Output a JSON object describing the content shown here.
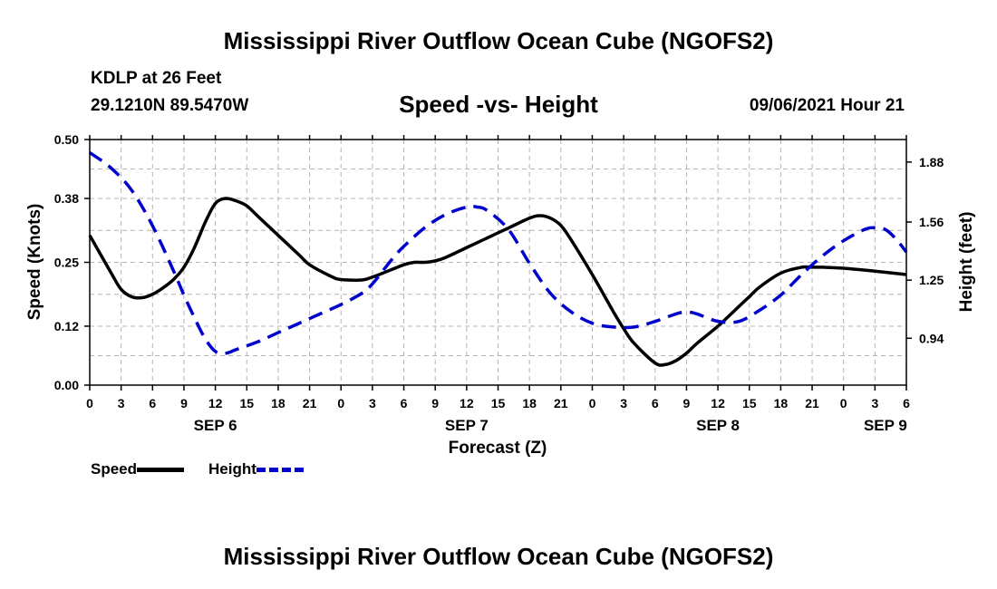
{
  "header": {
    "title": "Mississippi River Outflow Ocean Cube (NGOFS2)",
    "station": "KDLP at 26 Feet",
    "latlon": "29.1210N  89.5470W",
    "subtitle": "Speed -vs- Height",
    "datetime": "09/06/2021 Hour 21"
  },
  "footer": {
    "title": "Mississippi River Outflow Ocean Cube (NGOFS2)"
  },
  "legend": {
    "speed_label": "Speed",
    "height_label": "Height"
  },
  "chart_data": {
    "type": "line",
    "title": "Speed -vs- Height",
    "xlabel": "Forecast (Z)",
    "ylabel": "Speed (Knots)",
    "y2label": "Height (feet)",
    "xlim": [
      0,
      78
    ],
    "ylim": [
      0,
      0.5
    ],
    "y2lim": [
      0.69,
      2.0
    ],
    "grid": true,
    "legend_position": "bottom-left",
    "x_ticks": [
      0,
      3,
      6,
      9,
      12,
      15,
      18,
      21,
      24,
      27,
      30,
      33,
      36,
      39,
      42,
      45,
      48,
      51,
      54,
      57,
      60,
      63,
      66,
      69,
      72,
      75,
      78
    ],
    "x_tick_labels": [
      "0",
      "3",
      "6",
      "9",
      "12",
      "15",
      "18",
      "21",
      "0",
      "3",
      "6",
      "9",
      "12",
      "15",
      "18",
      "21",
      "0",
      "3",
      "6",
      "9",
      "12",
      "15",
      "18",
      "21",
      "0",
      "3",
      "6"
    ],
    "date_labels": [
      {
        "x": 12,
        "label": "SEP 6"
      },
      {
        "x": 36,
        "label": "SEP 7"
      },
      {
        "x": 60,
        "label": "SEP 8"
      },
      {
        "x": 76,
        "label": "SEP 9"
      }
    ],
    "y_ticks": [
      0.0,
      0.12,
      0.25,
      0.38,
      0.5
    ],
    "y_tick_labels": [
      "0.00",
      "0.12",
      "0.25",
      "0.38",
      "0.50"
    ],
    "y2_ticks": [
      0.94,
      1.25,
      1.56,
      1.88
    ],
    "y2_tick_labels": [
      "0.94",
      "1.25",
      "1.56",
      "1.88"
    ],
    "series": [
      {
        "name": "Speed",
        "axis": "left",
        "color": "#000000",
        "dash": "solid",
        "x": [
          0,
          2,
          3,
          4,
          5,
          6,
          7,
          8,
          9,
          10,
          11,
          12,
          13,
          14,
          15,
          16,
          18,
          20,
          21,
          23,
          24,
          26,
          27,
          28,
          30,
          31,
          32,
          33,
          34,
          36,
          38,
          40,
          42,
          43,
          44,
          45,
          46,
          48,
          50,
          51,
          52,
          54,
          55,
          56,
          57,
          58,
          60,
          62,
          63,
          64,
          66,
          68,
          69,
          70,
          72,
          75,
          78
        ],
        "values": [
          0.305,
          0.23,
          0.195,
          0.18,
          0.178,
          0.185,
          0.198,
          0.215,
          0.24,
          0.28,
          0.33,
          0.37,
          0.38,
          0.375,
          0.365,
          0.345,
          0.305,
          0.265,
          0.245,
          0.222,
          0.215,
          0.214,
          0.22,
          0.228,
          0.245,
          0.25,
          0.25,
          0.253,
          0.26,
          0.28,
          0.3,
          0.32,
          0.34,
          0.345,
          0.34,
          0.325,
          0.295,
          0.225,
          0.15,
          0.115,
          0.085,
          0.045,
          0.042,
          0.05,
          0.065,
          0.085,
          0.12,
          0.16,
          0.18,
          0.2,
          0.228,
          0.24,
          0.24,
          0.24,
          0.238,
          0.232,
          0.225
        ]
      },
      {
        "name": "Height",
        "axis": "right",
        "color": "#0000cc",
        "dash": "dashed",
        "x": [
          0,
          2,
          4,
          6,
          8,
          9,
          10,
          11,
          12,
          13,
          14,
          16,
          18,
          20,
          22,
          24,
          26,
          27,
          28,
          29,
          30,
          32,
          34,
          36,
          37,
          38,
          40,
          42,
          44,
          46,
          48,
          50,
          52,
          54,
          56,
          57,
          58,
          60,
          62,
          64,
          66,
          68,
          70,
          72,
          74,
          75,
          76,
          77,
          78
        ],
        "values": [
          1.93,
          1.85,
          1.73,
          1.54,
          1.3,
          1.17,
          1.05,
          0.94,
          0.87,
          0.86,
          0.88,
          0.92,
          0.97,
          1.02,
          1.07,
          1.12,
          1.18,
          1.23,
          1.3,
          1.37,
          1.43,
          1.53,
          1.6,
          1.64,
          1.64,
          1.62,
          1.52,
          1.34,
          1.18,
          1.08,
          1.02,
          1.0,
          1.0,
          1.03,
          1.07,
          1.08,
          1.07,
          1.03,
          1.03,
          1.09,
          1.17,
          1.28,
          1.38,
          1.46,
          1.52,
          1.53,
          1.52,
          1.47,
          1.4
        ]
      }
    ]
  }
}
